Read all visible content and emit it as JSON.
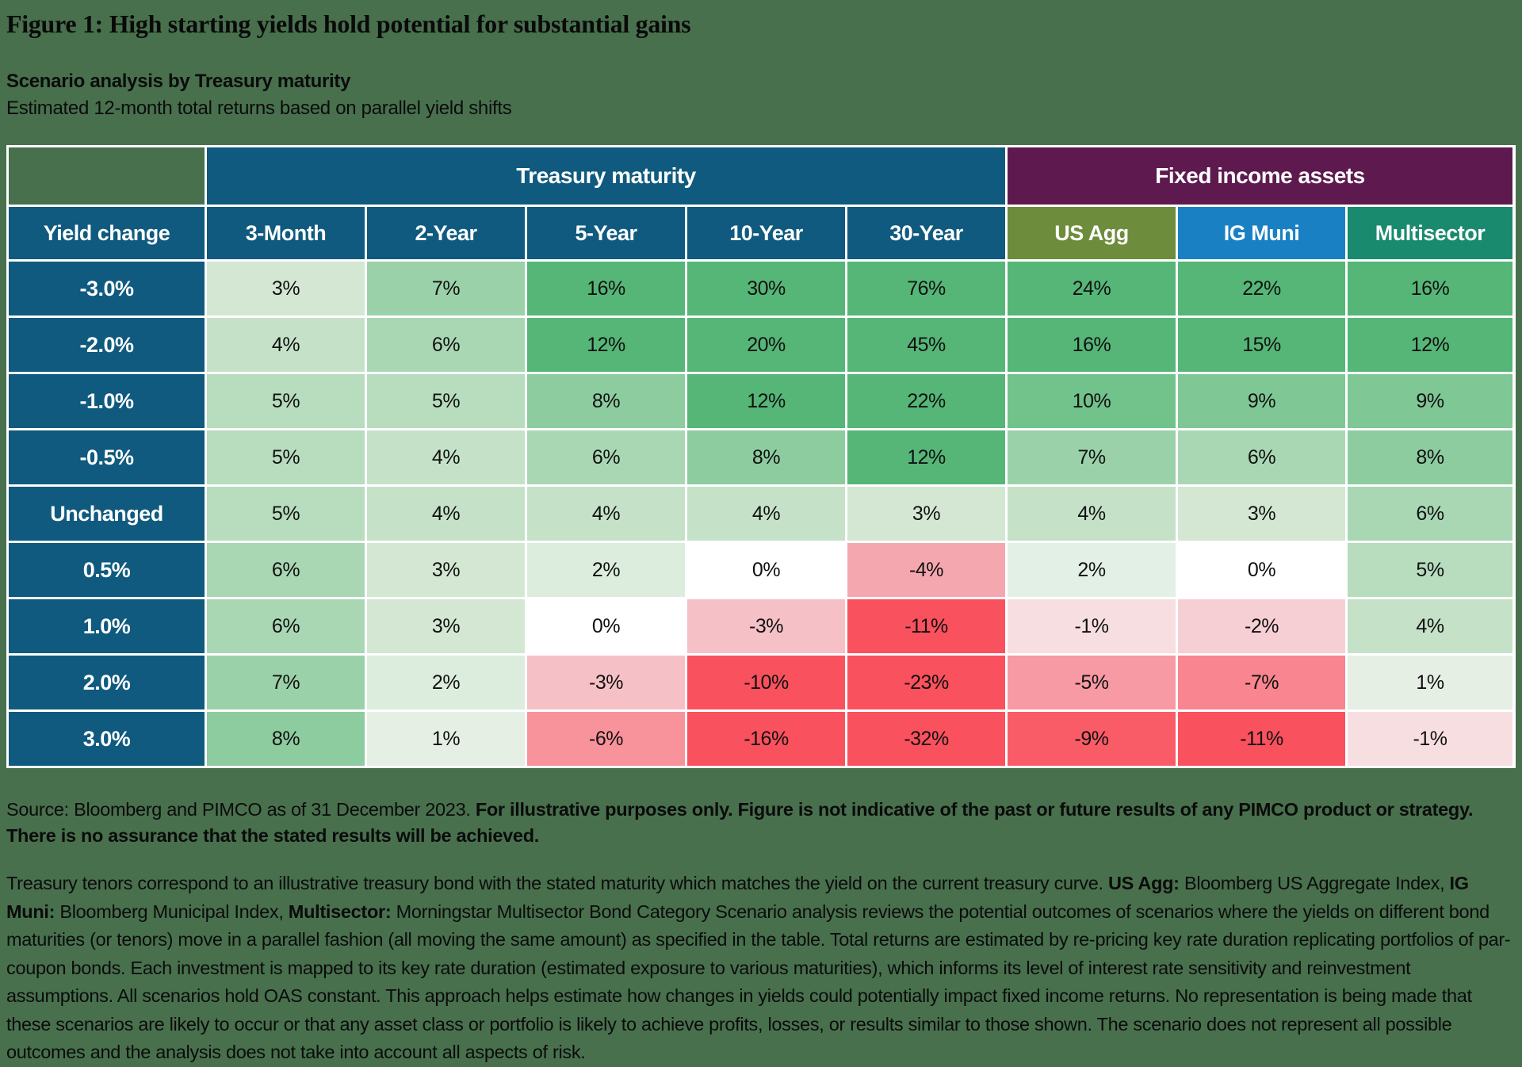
{
  "page_bg": "#48704d",
  "title": "Figure 1: High starting yields hold potential for substantial gains",
  "subtitle_bold": "Scenario analysis by Treasury maturity",
  "subtitle": "Estimated 12-month total returns based on parallel yield shifts",
  "table": {
    "corner_color": "#48704d",
    "row_header_color": "#0f5a7e",
    "group_headers": [
      {
        "label": "Treasury maturity",
        "span": 5,
        "color": "#0f5a7e"
      },
      {
        "label": "Fixed income assets",
        "span": 3,
        "color": "#5e1a4e"
      }
    ],
    "columns": [
      {
        "label": "Yield change",
        "color": "#0f5a7e"
      },
      {
        "label": "3-Month",
        "color": "#0f5a7e"
      },
      {
        "label": "2-Year",
        "color": "#0f5a7e"
      },
      {
        "label": "5-Year",
        "color": "#0f5a7e"
      },
      {
        "label": "10-Year",
        "color": "#0f5a7e"
      },
      {
        "label": "30-Year",
        "color": "#0f5a7e"
      },
      {
        "label": "US Agg",
        "color": "#6d8c3c"
      },
      {
        "label": "IG Muni",
        "color": "#1a80c4"
      },
      {
        "label": "Multisector",
        "color": "#1a8a6f"
      }
    ],
    "rows": [
      {
        "label": "-3.0%",
        "values": [
          "3%",
          "7%",
          "16%",
          "30%",
          "76%",
          "24%",
          "22%",
          "16%"
        ],
        "colors": [
          "#d3e7d3",
          "#9bd1a9",
          "#55b677",
          "#55b677",
          "#55b677",
          "#55b677",
          "#55b677",
          "#55b677"
        ]
      },
      {
        "label": "-2.0%",
        "values": [
          "4%",
          "6%",
          "12%",
          "20%",
          "45%",
          "16%",
          "15%",
          "12%"
        ],
        "colors": [
          "#c5e2c9",
          "#a9d7b4",
          "#55b677",
          "#55b677",
          "#55b677",
          "#55b677",
          "#55b677",
          "#55b677"
        ]
      },
      {
        "label": "-1.0%",
        "values": [
          "5%",
          "5%",
          "8%",
          "12%",
          "22%",
          "10%",
          "9%",
          "9%"
        ],
        "colors": [
          "#b7dcbe",
          "#b7dcbe",
          "#8dcc9f",
          "#55b677",
          "#55b677",
          "#71c28b",
          "#7fc795",
          "#7fc795"
        ]
      },
      {
        "label": "-0.5%",
        "values": [
          "5%",
          "4%",
          "6%",
          "8%",
          "12%",
          "7%",
          "6%",
          "8%"
        ],
        "colors": [
          "#b7dcbe",
          "#c5e2c9",
          "#a9d7b4",
          "#8dcc9f",
          "#55b677",
          "#9bd1a9",
          "#a9d7b4",
          "#8dcc9f"
        ]
      },
      {
        "label": "Unchanged",
        "values": [
          "5%",
          "4%",
          "4%",
          "4%",
          "3%",
          "4%",
          "3%",
          "6%"
        ],
        "colors": [
          "#b7dcbe",
          "#c5e2c9",
          "#c5e2c9",
          "#c5e2c9",
          "#d3e7d3",
          "#c5e2c9",
          "#d3e7d3",
          "#a9d7b4"
        ]
      },
      {
        "label": "0.5%",
        "values": [
          "6%",
          "3%",
          "2%",
          "0%",
          "-4%",
          "2%",
          "0%",
          "5%"
        ],
        "colors": [
          "#a9d7b4",
          "#d3e7d3",
          "#dcedde",
          "#ffffff",
          "#f5a7af",
          "#e3f0e6",
          "#ffffff",
          "#b7dcbe"
        ]
      },
      {
        "label": "1.0%",
        "values": [
          "6%",
          "3%",
          "0%",
          "-3%",
          "-11%",
          "-1%",
          "-2%",
          "4%"
        ],
        "colors": [
          "#a9d7b4",
          "#d3e7d3",
          "#ffffff",
          "#f5c0c6",
          "#f9515d",
          "#f7dee1",
          "#f6cfd4",
          "#c5e2c9"
        ]
      },
      {
        "label": "2.0%",
        "values": [
          "7%",
          "2%",
          "-3%",
          "-10%",
          "-23%",
          "-5%",
          "-7%",
          "1%"
        ],
        "colors": [
          "#9bd1a9",
          "#dcedde",
          "#f5c0c6",
          "#f9515d",
          "#f9515d",
          "#f89aa3",
          "#f8858f",
          "#e5efe4"
        ]
      },
      {
        "label": "3.0%",
        "values": [
          "8%",
          "1%",
          "-6%",
          "-16%",
          "-32%",
          "-9%",
          "-11%",
          "-1%"
        ],
        "colors": [
          "#8dcc9f",
          "#e5efe4",
          "#f8929b",
          "#f9515d",
          "#f9515d",
          "#f95c66",
          "#f9515d",
          "#f7dee1"
        ]
      }
    ]
  },
  "chart_data": {
    "type": "heatmap",
    "title": "Figure 1: High starting yields hold potential for substantial gains",
    "subtitle": "Scenario analysis by Treasury maturity",
    "description": "Estimated 12-month total returns based on parallel yield shifts",
    "column_groups": [
      {
        "label": "Treasury maturity",
        "columns": [
          "3-Month",
          "2-Year",
          "5-Year",
          "10-Year",
          "30-Year"
        ]
      },
      {
        "label": "Fixed income assets",
        "columns": [
          "US Agg",
          "IG Muni",
          "Multisector"
        ]
      }
    ],
    "x_categories": [
      "3-Month",
      "2-Year",
      "5-Year",
      "10-Year",
      "30-Year",
      "US Agg",
      "IG Muni",
      "Multisector"
    ],
    "y_axis_label": "Yield change",
    "y_categories": [
      "-3.0%",
      "-2.0%",
      "-1.0%",
      "-0.5%",
      "Unchanged",
      "0.5%",
      "1.0%",
      "2.0%",
      "3.0%"
    ],
    "unit": "%",
    "values_pct": [
      [
        3,
        7,
        16,
        30,
        76,
        24,
        22,
        16
      ],
      [
        4,
        6,
        12,
        20,
        45,
        16,
        15,
        12
      ],
      [
        5,
        5,
        8,
        12,
        22,
        10,
        9,
        9
      ],
      [
        5,
        4,
        6,
        8,
        12,
        7,
        6,
        8
      ],
      [
        5,
        4,
        4,
        4,
        3,
        4,
        3,
        6
      ],
      [
        6,
        3,
        2,
        0,
        -4,
        2,
        0,
        5
      ],
      [
        6,
        3,
        0,
        -3,
        -11,
        -1,
        -2,
        4
      ],
      [
        7,
        2,
        -3,
        -10,
        -23,
        -5,
        -7,
        1
      ],
      [
        8,
        1,
        -6,
        -16,
        -32,
        -9,
        -11,
        -1
      ]
    ],
    "color_scale": {
      "negative": "#f9515d",
      "zero": "#ffffff",
      "positive": "#55b677"
    }
  },
  "source_block": [
    {
      "text": "Source: Bloomberg and PIMCO as of 31 December 2023. ",
      "bold": false
    },
    {
      "text": "For illustrative purposes only. Figure is not indicative of the past or future results of any PIMCO product or strategy. There is no assurance that the stated results will be achieved.",
      "bold": true
    }
  ],
  "footnote_block": [
    {
      "text": "Treasury tenors correspond to an illustrative treasury bond with the stated maturity which matches the yield on the current treasury curve. ",
      "bold": false
    },
    {
      "text": "US Agg:",
      "bold": true
    },
    {
      "text": " Bloomberg US Aggregate Index, ",
      "bold": false
    },
    {
      "text": "IG Muni:",
      "bold": true
    },
    {
      "text": " Bloomberg Municipal Index, ",
      "bold": false
    },
    {
      "text": "Multisector:",
      "bold": true
    },
    {
      "text": " Morningstar Multisector Bond Category Scenario analysis reviews the potential outcomes of scenarios where the yields on different bond maturities (or tenors) move in a parallel fashion (all moving the same amount) as specified in the table. Total returns are estimated by re-pricing key rate duration replicating portfolios of par-coupon bonds. Each investment is mapped to its key rate duration (estimated exposure to various maturities), which informs its level of interest rate sensitivity and reinvestment assumptions. All scenarios hold OAS constant. This approach helps estimate how changes in yields could potentially impact fixed income returns. No representation is being made that these scenarios are likely to occur or that any asset class or portfolio is likely to achieve profits, losses, or results similar to those shown. The scenario does not represent all possible outcomes and the analysis does not take into account all aspects of risk.",
      "bold": false
    }
  ]
}
